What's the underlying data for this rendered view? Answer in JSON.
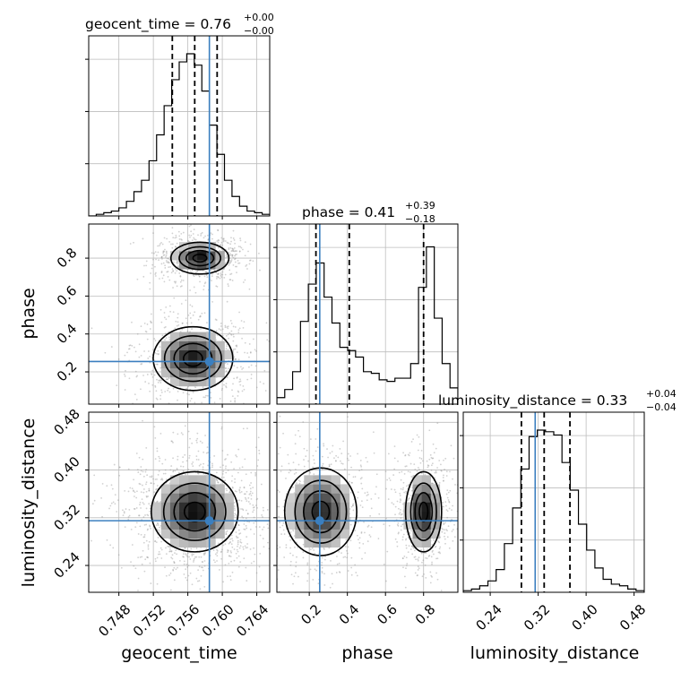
{
  "chart_data": {
    "type": "corner",
    "parameters": [
      "geocent_time",
      "phase",
      "luminosity_distance"
    ],
    "truth": {
      "geocent_time": 0.7585,
      "phase": 0.255,
      "luminosity_distance": 0.315
    },
    "truth_color": "#3b7fbf",
    "axis_ranges": {
      "geocent_time": [
        0.7445,
        0.7655
      ],
      "phase": [
        0.03,
        0.98
      ],
      "luminosity_distance": [
        0.195,
        0.497
      ]
    },
    "grid": true,
    "titles": [
      {
        "param": "geocent_time",
        "prefix": "geocent_time = ",
        "median": "0.76",
        "plus": "+0.00",
        "minus": "−0.00"
      },
      {
        "param": "phase",
        "prefix": "phase = ",
        "median": "0.41",
        "plus": "+0.39",
        "minus": "−0.18"
      },
      {
        "param": "luminosity_distance",
        "prefix": "luminosity_distance = ",
        "median": "0.33",
        "plus": "+0.04",
        "minus": "−0.04"
      }
    ],
    "axis_labels": {
      "x": [
        "geocent_time",
        "phase",
        "luminosity_distance"
      ],
      "y": [
        "phase",
        "luminosity_distance"
      ]
    },
    "ticks": {
      "geocent_time": [
        "0.748",
        "0.752",
        "0.756",
        "0.760",
        "0.764"
      ],
      "phase": [
        "0.2",
        "0.4",
        "0.6",
        "0.8"
      ],
      "luminosity_distance": [
        "0.24",
        "0.32",
        "0.40",
        "0.48"
      ]
    },
    "quantiles": {
      "geocent_time": [
        0.7542,
        0.7568,
        0.7594
      ],
      "phase": [
        0.235,
        0.41,
        0.8
      ],
      "luminosity_distance": [
        0.292,
        0.33,
        0.373
      ]
    },
    "histograms": {
      "geocent_time": {
        "edges": [
          0.7445,
          0.7655
        ],
        "counts": [
          0,
          0.01,
          0.02,
          0.03,
          0.05,
          0.09,
          0.15,
          0.22,
          0.34,
          0.5,
          0.68,
          0.84,
          0.95,
          1.0,
          0.93,
          0.77,
          0.56,
          0.38,
          0.22,
          0.12,
          0.06,
          0.03,
          0.02,
          0.01
        ]
      },
      "phase": {
        "edges": [
          0.03,
          0.98
        ],
        "counts": [
          0.04,
          0.09,
          0.2,
          0.51,
          0.74,
          0.87,
          0.66,
          0.5,
          0.35,
          0.33,
          0.29,
          0.2,
          0.19,
          0.15,
          0.14,
          0.16,
          0.16,
          0.25,
          0.72,
          0.97,
          0.53,
          0.25,
          0.1
        ]
      },
      "luminosity_distance": {
        "edges": [
          0.195,
          0.497
        ],
        "counts": [
          0.01,
          0.02,
          0.04,
          0.07,
          0.14,
          0.3,
          0.52,
          0.76,
          0.96,
          1.0,
          0.99,
          0.97,
          0.8,
          0.63,
          0.42,
          0.26,
          0.15,
          0.08,
          0.05,
          0.04,
          0.02,
          0.01
        ]
      }
    },
    "contours_2d": [
      {
        "x_param": "geocent_time",
        "y_param": "phase",
        "modes": [
          {
            "cx": 0.7574,
            "cy": 0.8,
            "sx": 0.0016,
            "sy": 0.04,
            "w": 1.0
          },
          {
            "cx": 0.7566,
            "cy": 0.27,
            "sx": 0.0022,
            "sy": 0.08,
            "w": 0.95
          }
        ]
      },
      {
        "x_param": "geocent_time",
        "y_param": "luminosity_distance",
        "modes": [
          {
            "cx": 0.7568,
            "cy": 0.33,
            "sx": 0.0024,
            "sy": 0.032,
            "w": 1.0
          }
        ]
      },
      {
        "x_param": "phase",
        "y_param": "luminosity_distance",
        "modes": [
          {
            "cx": 0.26,
            "cy": 0.33,
            "sx": 0.09,
            "sy": 0.035,
            "w": 0.9
          },
          {
            "cx": 0.8,
            "cy": 0.33,
            "sx": 0.045,
            "sy": 0.032,
            "w": 1.0
          }
        ]
      }
    ]
  }
}
